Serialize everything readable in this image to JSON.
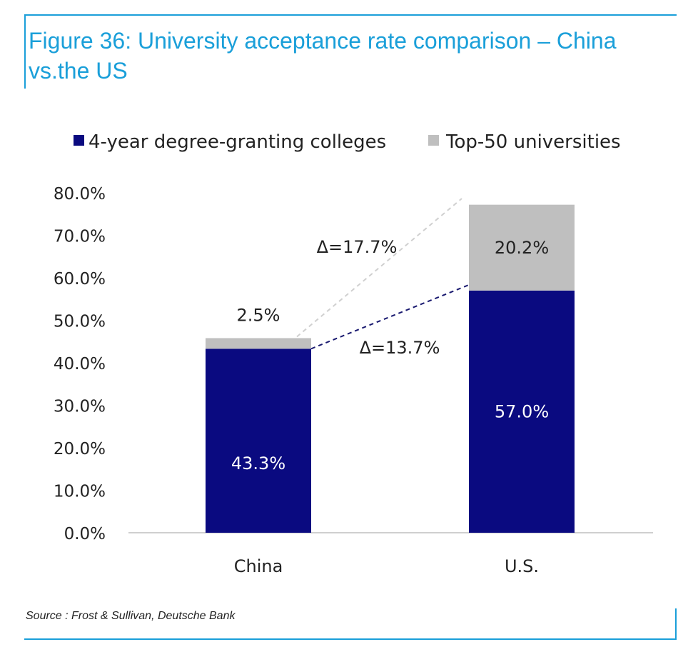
{
  "figure": {
    "title": "Figure 36: University acceptance rate comparison – China vs.the US",
    "source": "Source : Frost & Sullivan, Deutsche Bank"
  },
  "chart_data": {
    "type": "bar",
    "stacked": true,
    "categories": [
      "China",
      "U.S."
    ],
    "series": [
      {
        "name": "4-year degree-granting colleges",
        "values": [
          43.3,
          57.0
        ],
        "labels": [
          "43.3%",
          "57.0%"
        ],
        "color": "#0a0a80"
      },
      {
        "name": "Top-50 universities",
        "values": [
          2.5,
          20.2
        ],
        "labels": [
          "2.5%",
          "20.2%"
        ],
        "color": "#bfbfbf"
      }
    ],
    "ylim": [
      0,
      80
    ],
    "yticks": [
      "0.0%",
      "10.0%",
      "20.0%",
      "30.0%",
      "40.0%",
      "50.0%",
      "60.0%",
      "70.0%",
      "80.0%"
    ],
    "legend_position": "top",
    "grid": false,
    "annotations": [
      {
        "text": "Δ=17.7%",
        "style": "dashed-gray"
      },
      {
        "text": "Δ=13.7%",
        "style": "dashed-navy"
      }
    ]
  }
}
